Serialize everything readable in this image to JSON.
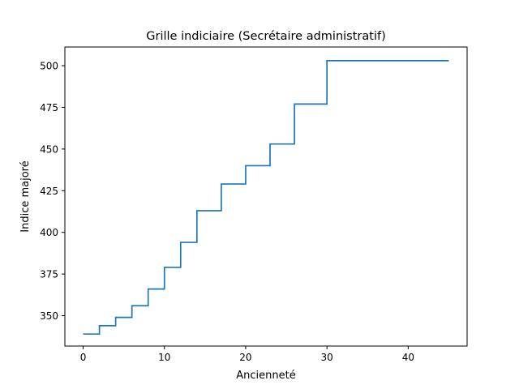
{
  "chart_data": {
    "type": "line",
    "title": "Grille indiciaire (Secrétaire administratif)",
    "xlabel": "Ancienneté",
    "ylabel": "Indice majoré",
    "xlim": [
      -2.25,
      47.25
    ],
    "ylim": [
      331.8,
      511.2
    ],
    "xticks": [
      0,
      10,
      20,
      30,
      40
    ],
    "yticks": [
      350,
      375,
      400,
      425,
      450,
      475,
      500
    ],
    "grid": false,
    "step": "post",
    "series": [
      {
        "color": "#1f77b4",
        "x": [
          0,
          2,
          4,
          6,
          8,
          10,
          12,
          14,
          17,
          20,
          23,
          26,
          30,
          45
        ],
        "y": [
          339,
          344,
          349,
          356,
          366,
          379,
          394,
          413,
          429,
          440,
          453,
          477,
          503,
          503
        ]
      }
    ]
  }
}
